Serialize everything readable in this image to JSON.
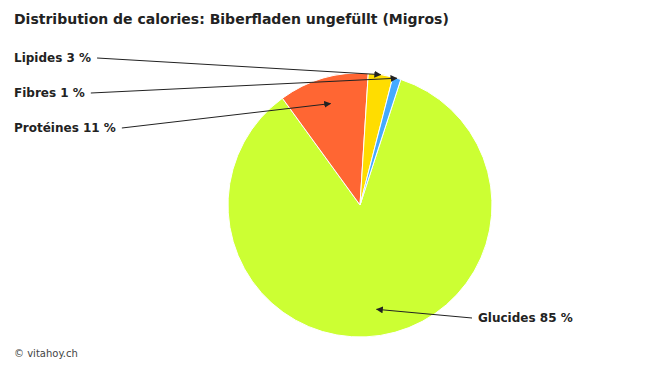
{
  "chart_data": {
    "type": "pie",
    "title": "Distribution de calories: Biberfladen ungefüllt (Migros)",
    "categories": [
      "Glucides 85 %",
      "Protéines 11 %",
      "Lipides 3 %",
      "Fibres 1 %"
    ],
    "values": [
      85,
      11,
      3,
      1
    ],
    "colors": [
      "#ccff33",
      "#ff6633",
      "#ffdd00",
      "#44aaff"
    ],
    "annotations": [
      "© vitahoy.ch"
    ]
  }
}
